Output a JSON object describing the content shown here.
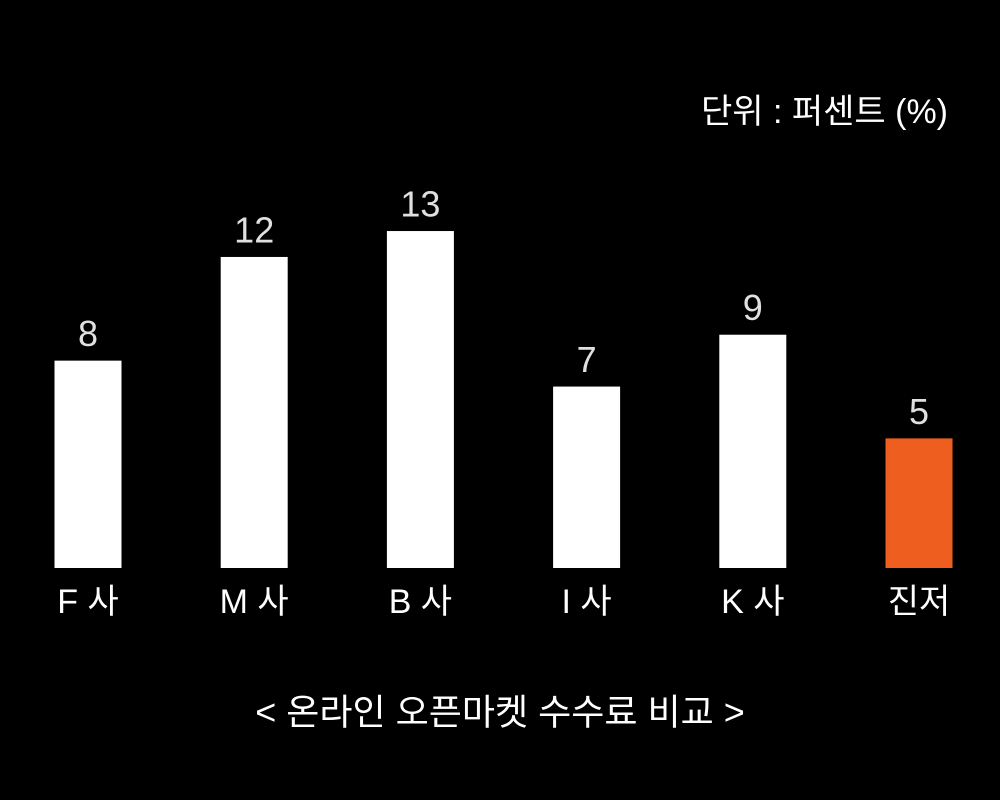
{
  "chart_data": {
    "type": "bar",
    "title": "< 온라인 오픈마켓 수수료 비교 >",
    "unit_label": "단위 : 퍼센트 (%)",
    "categories": [
      "F 사",
      "M 사",
      "B 사",
      "I 사",
      "K 사",
      "진저"
    ],
    "values": [
      8,
      12,
      13,
      7,
      9,
      5
    ],
    "colors": [
      "#ffffff",
      "#ffffff",
      "#ffffff",
      "#ffffff",
      "#ffffff",
      "#ee5f1f"
    ]
  }
}
